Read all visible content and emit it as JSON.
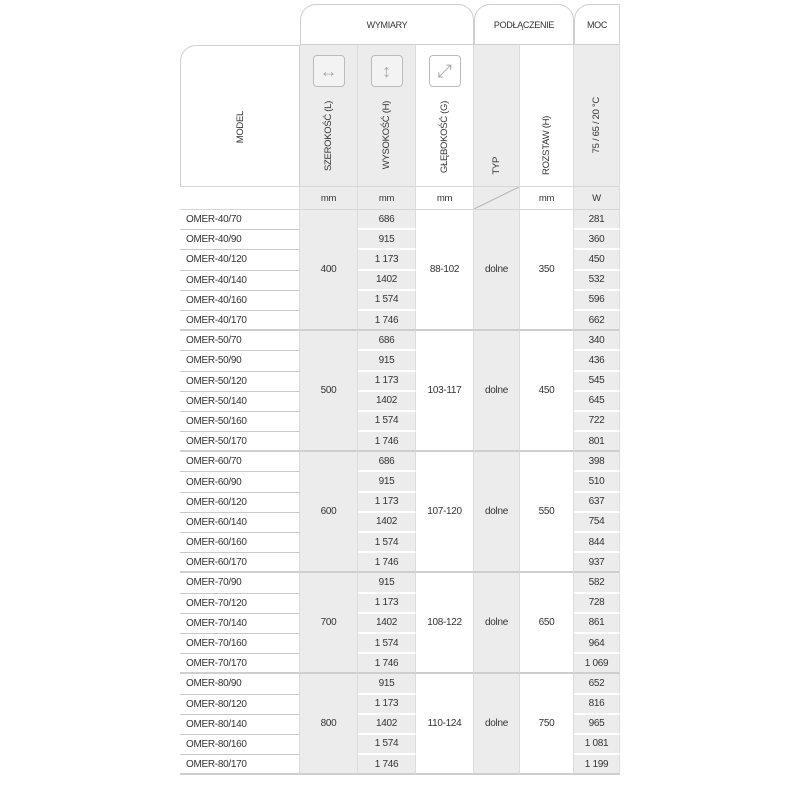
{
  "headers": {
    "group_dimensions": "WYMIARY",
    "group_connection": "PODŁĄCZENIE",
    "group_power": "MOC",
    "model": "MODEL",
    "width": "SZEROKOŚĆ (L)",
    "height": "WYSOKOŚĆ (H)",
    "depth": "GŁĘBOKOŚĆ (G)",
    "type": "TYP",
    "spacing": "ROZSTAW (H)",
    "power": "75 / 65 / 20 °C",
    "unit_width": "mm",
    "unit_height": "mm",
    "unit_depth": "mm",
    "unit_spacing": "mm",
    "unit_power": "W",
    "icons": [
      "arrows-horizontal-icon",
      "arrows-vertical-icon",
      "arrows-diagonal-icon"
    ]
  },
  "groups": [
    {
      "width": "400",
      "depth": "88-102",
      "type": "dolne",
      "spacing": "350",
      "rows": [
        {
          "model": "OMER-40/70",
          "height": "686",
          "power": "281"
        },
        {
          "model": "OMER-40/90",
          "height": "915",
          "power": "360"
        },
        {
          "model": "OMER-40/120",
          "height": "1 173",
          "power": "450"
        },
        {
          "model": "OMER-40/140",
          "height": "1402",
          "power": "532"
        },
        {
          "model": "OMER-40/160",
          "height": "1 574",
          "power": "596"
        },
        {
          "model": "OMER-40/170",
          "height": "1 746",
          "power": "662"
        }
      ]
    },
    {
      "width": "500",
      "depth": "103-117",
      "type": "dolne",
      "spacing": "450",
      "rows": [
        {
          "model": "OMER-50/70",
          "height": "686",
          "power": "340"
        },
        {
          "model": "OMER-50/90",
          "height": "915",
          "power": "436"
        },
        {
          "model": "OMER-50/120",
          "height": "1 173",
          "power": "545"
        },
        {
          "model": "OMER-50/140",
          "height": "1402",
          "power": "645"
        },
        {
          "model": "OMER-50/160",
          "height": "1 574",
          "power": "722"
        },
        {
          "model": "OMER-50/170",
          "height": "1 746",
          "power": "801"
        }
      ]
    },
    {
      "width": "600",
      "depth": "107-120",
      "type": "dolne",
      "spacing": "550",
      "rows": [
        {
          "model": "OMER-60/70",
          "height": "686",
          "power": "398"
        },
        {
          "model": "OMER-60/90",
          "height": "915",
          "power": "510"
        },
        {
          "model": "OMER-60/120",
          "height": "1 173",
          "power": "637"
        },
        {
          "model": "OMER-60/140",
          "height": "1402",
          "power": "754"
        },
        {
          "model": "OMER-60/160",
          "height": "1 574",
          "power": "844"
        },
        {
          "model": "OMER-60/170",
          "height": "1 746",
          "power": "937"
        }
      ]
    },
    {
      "width": "700",
      "depth": "108-122",
      "type": "dolne",
      "spacing": "650",
      "rows": [
        {
          "model": "OMER-70/90",
          "height": "915",
          "power": "582"
        },
        {
          "model": "OMER-70/120",
          "height": "1 173",
          "power": "728"
        },
        {
          "model": "OMER-70/140",
          "height": "1402",
          "power": "861"
        },
        {
          "model": "OMER-70/160",
          "height": "1 574",
          "power": "964"
        },
        {
          "model": "OMER-70/170",
          "height": "1 746",
          "power": "1 069"
        }
      ]
    },
    {
      "width": "800",
      "depth": "110-124",
      "type": "dolne",
      "spacing": "750",
      "rows": [
        {
          "model": "OMER-80/90",
          "height": "915",
          "power": "652"
        },
        {
          "model": "OMER-80/120",
          "height": "1 173",
          "power": "816"
        },
        {
          "model": "OMER-80/140",
          "height": "1402",
          "power": "965"
        },
        {
          "model": "OMER-80/160",
          "height": "1 574",
          "power": "1 081"
        },
        {
          "model": "OMER-80/170",
          "height": "1 746",
          "power": "1 199"
        }
      ]
    }
  ]
}
